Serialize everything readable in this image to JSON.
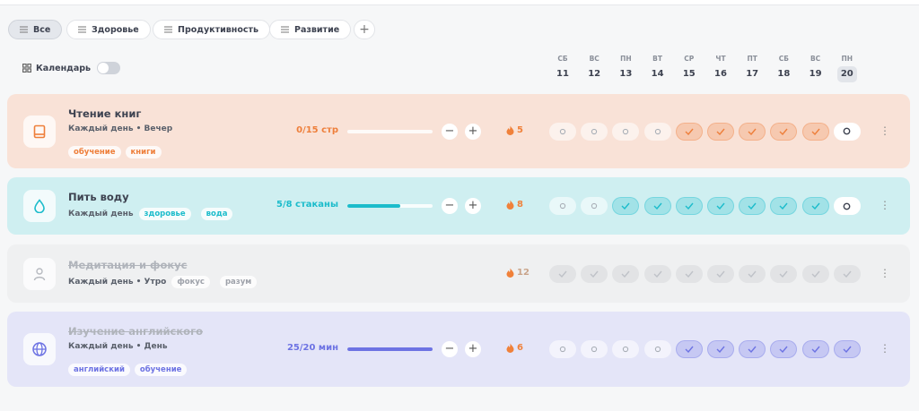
{
  "filters": [
    "Все",
    "Здоровье",
    "Продуктивность",
    "Развитие"
  ],
  "active_filter": 0,
  "calendar_label": "Календарь",
  "days": [
    {
      "weekday": "СБ",
      "date": "11"
    },
    {
      "weekday": "ВС",
      "date": "12"
    },
    {
      "weekday": "ПН",
      "date": "13"
    },
    {
      "weekday": "ВТ",
      "date": "14"
    },
    {
      "weekday": "СР",
      "date": "15"
    },
    {
      "weekday": "ЧТ",
      "date": "16"
    },
    {
      "weekday": "ПТ",
      "date": "17"
    },
    {
      "weekday": "СБ",
      "date": "18"
    },
    {
      "weekday": "ВС",
      "date": "19"
    },
    {
      "weekday": "ПН",
      "date": "20"
    }
  ],
  "today_index": 9,
  "habits": [
    {
      "title": "Чтение книг",
      "schedule": "Каждый день • Вечер",
      "tags": [
        "обучение",
        "книги"
      ],
      "progress": {
        "value": 0,
        "target": 15,
        "label": "0/15 стр"
      },
      "streak": 5,
      "color": "#ee7f3b",
      "background": "#f9e2d7",
      "archived": false,
      "checks": [
        "empty",
        "empty",
        "empty",
        "empty",
        "done",
        "done",
        "done",
        "done",
        "done",
        "today"
      ]
    },
    {
      "title": "Пить воду",
      "schedule": "Каждый день",
      "tags": [
        "здоровье",
        "вода"
      ],
      "progress": {
        "value": 5,
        "target": 8,
        "label": "5/8 стаканы"
      },
      "streak": 8,
      "color": "#1cbccb",
      "background": "#cfeff1",
      "archived": false,
      "checks": [
        "empty",
        "empty",
        "done",
        "done",
        "done",
        "done",
        "done",
        "done",
        "done",
        "today"
      ]
    },
    {
      "title": "Медитация и фокус",
      "schedule": "Каждый день • Утро",
      "tags": [
        "фокус",
        "разум"
      ],
      "streak": 12,
      "color": "#b9bcc2",
      "background": "#eff0f1",
      "archived": true,
      "checks": [
        "done",
        "done",
        "done",
        "done",
        "done",
        "done",
        "done",
        "done",
        "done",
        "done"
      ]
    },
    {
      "title": "Изучение английского",
      "schedule": "Каждый день • День",
      "tags": [
        "английский",
        "обучение"
      ],
      "progress": {
        "value": 25,
        "target": 20,
        "label": "25/20 мин"
      },
      "streak": 6,
      "color": "#6d73e3",
      "background": "#e4e5f8",
      "archived": true,
      "checks": [
        "empty",
        "empty",
        "empty",
        "empty",
        "done",
        "done",
        "done",
        "done",
        "done",
        "done"
      ]
    }
  ]
}
